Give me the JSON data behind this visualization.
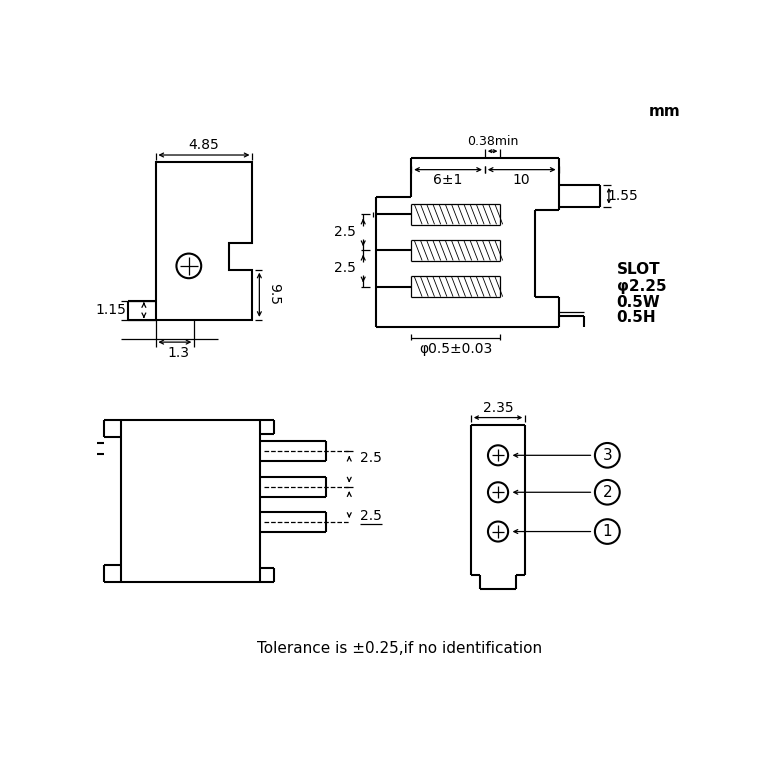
{
  "bg_color": "#ffffff",
  "fig_width": 7.79,
  "fig_height": 7.72,
  "dpi": 100,
  "unit_label": "mm",
  "tolerance_text": "Tolerance is ±0.25,if no identification",
  "dim_4_85": "4.85",
  "dim_9_5": "9.5",
  "dim_1_15": "1.15",
  "dim_1_3": "1.3",
  "dim_0_38min": "0.38min",
  "dim_6pm1": "6±1",
  "dim_10": "10",
  "dim_1_55": "1.55",
  "dim_2_5a": "2.5",
  "dim_2_5b": "2.5",
  "dim_2_5c": "2.5",
  "dim_2_5d": "2.5",
  "dim_phi": "φ0.5±0.03",
  "dim_2_35": "2.35",
  "slot_lines": [
    "SLOT",
    "φ2.25",
    "0.5W",
    "0.5H"
  ],
  "pin_labels": [
    "3",
    "2",
    "1"
  ]
}
